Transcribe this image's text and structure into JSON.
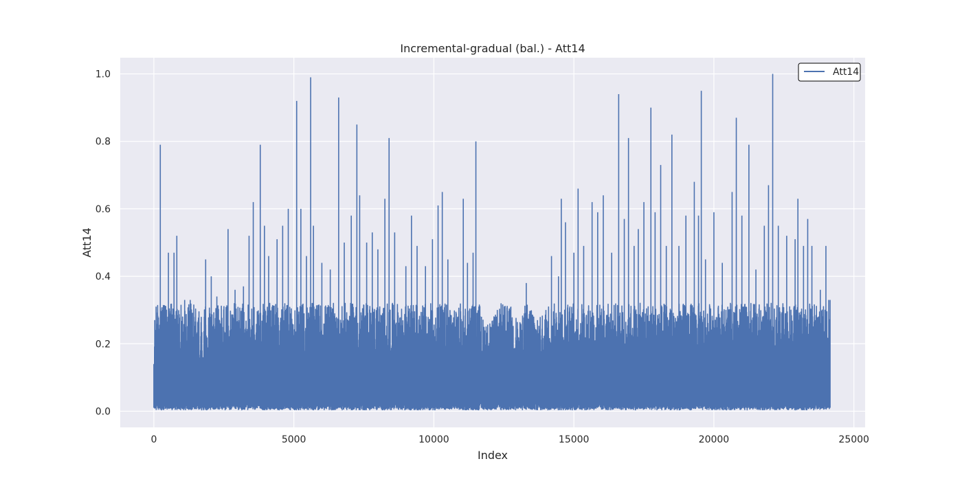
{
  "chart_data": {
    "type": "line",
    "title": "Incremental-gradual (bal.) - Att14",
    "xlabel": "Index",
    "ylabel": "Att14",
    "xlim": [
      -1200,
      25400
    ],
    "ylim": [
      -0.048,
      1.048
    ],
    "x_ticks": [
      0,
      5000,
      10000,
      15000,
      20000,
      25000
    ],
    "x_tick_labels": [
      "0",
      "5000",
      "10000",
      "15000",
      "20000",
      "25000"
    ],
    "y_ticks": [
      0.0,
      0.2,
      0.4,
      0.6,
      0.8,
      1.0
    ],
    "y_tick_labels": [
      "0.0",
      "0.2",
      "0.4",
      "0.6",
      "0.8",
      "1.0"
    ],
    "grid": true,
    "legend_position": "top-right",
    "x_range": [
      0,
      24150
    ],
    "series": [
      {
        "name": "Att14",
        "color": "#4c72b0",
        "upper_envelope": [
          [
            0,
            0.14
          ],
          [
            30,
            0.27
          ],
          [
            80,
            0.31
          ],
          [
            230,
            0.79
          ],
          [
            320,
            0.3
          ],
          [
            520,
            0.47
          ],
          [
            720,
            0.47
          ],
          [
            820,
            0.52
          ],
          [
            1100,
            0.33
          ],
          [
            1300,
            0.33
          ],
          [
            1800,
            0.28
          ],
          [
            1850,
            0.45
          ],
          [
            2050,
            0.4
          ],
          [
            2250,
            0.34
          ],
          [
            2650,
            0.54
          ],
          [
            2900,
            0.36
          ],
          [
            3200,
            0.37
          ],
          [
            3400,
            0.52
          ],
          [
            3550,
            0.62
          ],
          [
            3800,
            0.79
          ],
          [
            3950,
            0.55
          ],
          [
            4100,
            0.46
          ],
          [
            4400,
            0.51
          ],
          [
            4600,
            0.55
          ],
          [
            4800,
            0.6
          ],
          [
            5100,
            0.92
          ],
          [
            5250,
            0.6
          ],
          [
            5450,
            0.46
          ],
          [
            5600,
            0.99
          ],
          [
            5700,
            0.55
          ],
          [
            6000,
            0.44
          ],
          [
            6300,
            0.42
          ],
          [
            6600,
            0.93
          ],
          [
            6800,
            0.5
          ],
          [
            7050,
            0.58
          ],
          [
            7250,
            0.85
          ],
          [
            7350,
            0.64
          ],
          [
            7600,
            0.5
          ],
          [
            7800,
            0.53
          ],
          [
            8000,
            0.48
          ],
          [
            8250,
            0.63
          ],
          [
            8400,
            0.81
          ],
          [
            8600,
            0.53
          ],
          [
            9000,
            0.43
          ],
          [
            9200,
            0.58
          ],
          [
            9400,
            0.49
          ],
          [
            9700,
            0.43
          ],
          [
            9950,
            0.51
          ],
          [
            10150,
            0.61
          ],
          [
            10300,
            0.65
          ],
          [
            10500,
            0.45
          ],
          [
            10800,
            0.29
          ],
          [
            11050,
            0.63
          ],
          [
            11200,
            0.44
          ],
          [
            11400,
            0.47
          ],
          [
            11500,
            0.8
          ],
          [
            11700,
            0.28
          ],
          [
            12000,
            0.26
          ],
          [
            12400,
            0.32
          ],
          [
            12750,
            0.31
          ],
          [
            13100,
            0.26
          ],
          [
            13300,
            0.38
          ],
          [
            13700,
            0.27
          ],
          [
            14000,
            0.3
          ],
          [
            14200,
            0.46
          ],
          [
            14450,
            0.4
          ],
          [
            14550,
            0.63
          ],
          [
            14700,
            0.56
          ],
          [
            15000,
            0.47
          ],
          [
            15150,
            0.66
          ],
          [
            15350,
            0.49
          ],
          [
            15650,
            0.62
          ],
          [
            15850,
            0.59
          ],
          [
            16050,
            0.64
          ],
          [
            16350,
            0.47
          ],
          [
            16600,
            0.94
          ],
          [
            16800,
            0.57
          ],
          [
            16950,
            0.81
          ],
          [
            17150,
            0.49
          ],
          [
            17300,
            0.54
          ],
          [
            17500,
            0.62
          ],
          [
            17750,
            0.9
          ],
          [
            17900,
            0.59
          ],
          [
            18100,
            0.73
          ],
          [
            18300,
            0.49
          ],
          [
            18500,
            0.82
          ],
          [
            18750,
            0.49
          ],
          [
            19000,
            0.58
          ],
          [
            19300,
            0.68
          ],
          [
            19450,
            0.58
          ],
          [
            19550,
            0.95
          ],
          [
            19700,
            0.45
          ],
          [
            20000,
            0.59
          ],
          [
            20300,
            0.44
          ],
          [
            20650,
            0.65
          ],
          [
            20800,
            0.87
          ],
          [
            21000,
            0.58
          ],
          [
            21250,
            0.79
          ],
          [
            21500,
            0.42
          ],
          [
            21800,
            0.55
          ],
          [
            21950,
            0.67
          ],
          [
            22100,
            1.0
          ],
          [
            22300,
            0.55
          ],
          [
            22600,
            0.52
          ],
          [
            22900,
            0.51
          ],
          [
            23000,
            0.63
          ],
          [
            23200,
            0.49
          ],
          [
            23350,
            0.57
          ],
          [
            23500,
            0.49
          ],
          [
            23800,
            0.36
          ],
          [
            24000,
            0.49
          ],
          [
            24100,
            0.33
          ],
          [
            24150,
            0.33
          ]
        ]
      }
    ]
  }
}
